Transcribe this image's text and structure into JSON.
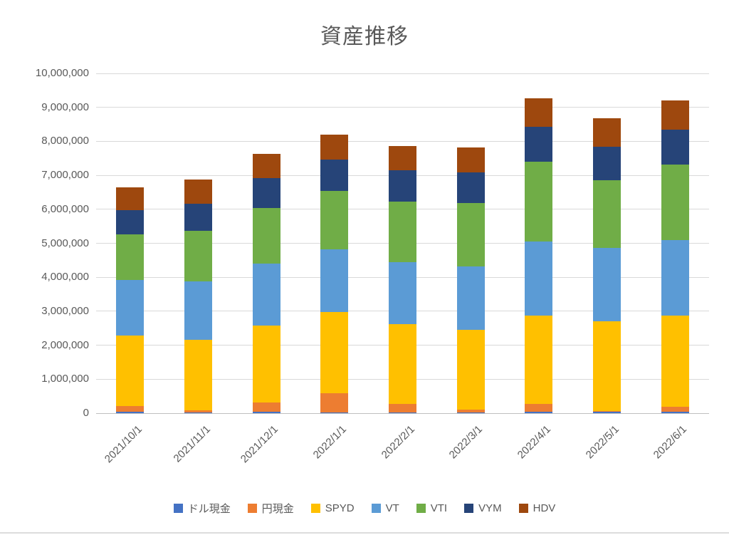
{
  "title": "資産推移",
  "colors": {
    "title_text": "#595959",
    "axis_text": "#595959",
    "gridline": "#d9d9d9",
    "baseline": "#bfbfbf",
    "background": "#ffffff"
  },
  "chart_data": {
    "type": "bar",
    "stacked": true,
    "title": "資産推移",
    "xlabel": "",
    "ylabel": "",
    "ylim": [
      0,
      10000000
    ],
    "ytick_step": 1000000,
    "ytick_labels": [
      "0",
      "1,000,000",
      "2,000,000",
      "3,000,000",
      "4,000,000",
      "5,000,000",
      "6,000,000",
      "7,000,000",
      "8,000,000",
      "9,000,000",
      "10,000,000"
    ],
    "grid": true,
    "legend_position": "bottom",
    "categories": [
      "2021/10/1",
      "2021/11/1",
      "2021/12/1",
      "2022/1/1",
      "2022/2/1",
      "2022/3/1",
      "2022/4/1",
      "2022/5/1",
      "2022/6/1"
    ],
    "series": [
      {
        "name": "ドル現金",
        "color": "#4472C4",
        "values": [
          50000,
          30000,
          50000,
          30000,
          20000,
          30000,
          50000,
          50000,
          40000
        ]
      },
      {
        "name": "円現金",
        "color": "#ED7D31",
        "values": [
          170000,
          50000,
          260000,
          560000,
          260000,
          80000,
          230000,
          20000,
          150000
        ]
      },
      {
        "name": "SPYD",
        "color": "#FFC000",
        "values": [
          2060000,
          2080000,
          2260000,
          2380000,
          2350000,
          2340000,
          2600000,
          2630000,
          2680000
        ]
      },
      {
        "name": "VT",
        "color": "#5B9BD5",
        "values": [
          1640000,
          1720000,
          1840000,
          1850000,
          1820000,
          1870000,
          2180000,
          2170000,
          2230000
        ]
      },
      {
        "name": "VTI",
        "color": "#70AD47",
        "values": [
          1350000,
          1490000,
          1620000,
          1720000,
          1780000,
          1860000,
          2340000,
          1980000,
          2210000
        ]
      },
      {
        "name": "VYM",
        "color": "#264478",
        "values": [
          710000,
          790000,
          890000,
          930000,
          910000,
          910000,
          1020000,
          1000000,
          1030000
        ]
      },
      {
        "name": "HDV",
        "color": "#9E480E",
        "values": [
          670000,
          710000,
          710000,
          730000,
          730000,
          740000,
          850000,
          830000,
          860000
        ]
      }
    ],
    "totals": [
      6650000,
      6870000,
      7630000,
      8200000,
      7870000,
      7830000,
      9270000,
      8680000,
      9200000
    ]
  },
  "legend": {
    "items": [
      {
        "label": "ドル現金",
        "color": "#4472C4"
      },
      {
        "label": "円現金",
        "color": "#ED7D31"
      },
      {
        "label": "SPYD",
        "color": "#FFC000"
      },
      {
        "label": "VT",
        "color": "#5B9BD5"
      },
      {
        "label": "VTI",
        "color": "#70AD47"
      },
      {
        "label": "VYM",
        "color": "#264478"
      },
      {
        "label": "HDV",
        "color": "#9E480E"
      }
    ]
  }
}
